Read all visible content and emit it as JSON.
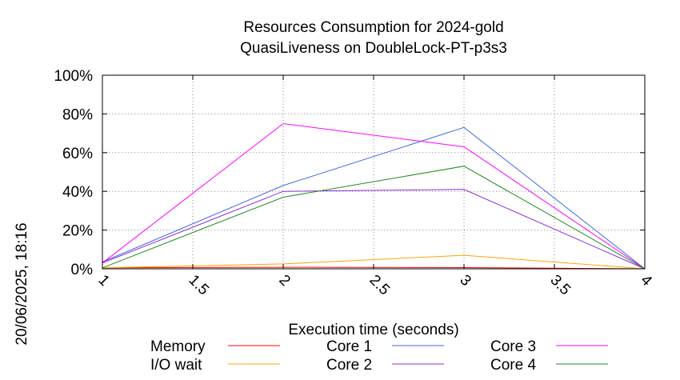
{
  "chart_data": {
    "type": "line",
    "title": [
      "Resources Consumption for 2024-gold",
      "QuasiLiveness on DoubleLock-PT-p3s3"
    ],
    "xlabel": "Execution time (seconds)",
    "ylabel": "",
    "side_label": "20/06/2025, 18:16",
    "xlim": [
      1,
      4
    ],
    "ylim": [
      0,
      100
    ],
    "x_ticks": [
      1,
      1.5,
      2,
      2.5,
      3,
      3.5,
      4
    ],
    "x_tick_labels": [
      "1",
      "1.5",
      "2",
      "2.5",
      "3",
      "3.5",
      "4"
    ],
    "y_ticks": [
      0,
      20,
      40,
      60,
      80,
      100
    ],
    "y_tick_labels": [
      "0%",
      "20%",
      "40%",
      "60%",
      "80%",
      "100%"
    ],
    "grid": true,
    "legend_position": "bottom",
    "x": [
      1,
      2,
      3,
      4
    ],
    "series": [
      {
        "name": "Memory",
        "color": "#ff0000",
        "values": [
          0.5,
          0.8,
          0.6,
          0
        ]
      },
      {
        "name": "I/O wait",
        "color": "#ffa500",
        "values": [
          0.5,
          2.5,
          7,
          0
        ]
      },
      {
        "name": "Core 1",
        "color": "#4169e1",
        "values": [
          3.5,
          43,
          73,
          0
        ]
      },
      {
        "name": "Core 2",
        "color": "#8a2be2",
        "values": [
          3,
          40,
          41,
          0
        ]
      },
      {
        "name": "Core 3",
        "color": "#ff00ff",
        "values": [
          3,
          75,
          63,
          0
        ]
      },
      {
        "name": "Core 4",
        "color": "#228b22",
        "values": [
          0.5,
          37,
          53,
          0
        ]
      }
    ]
  }
}
